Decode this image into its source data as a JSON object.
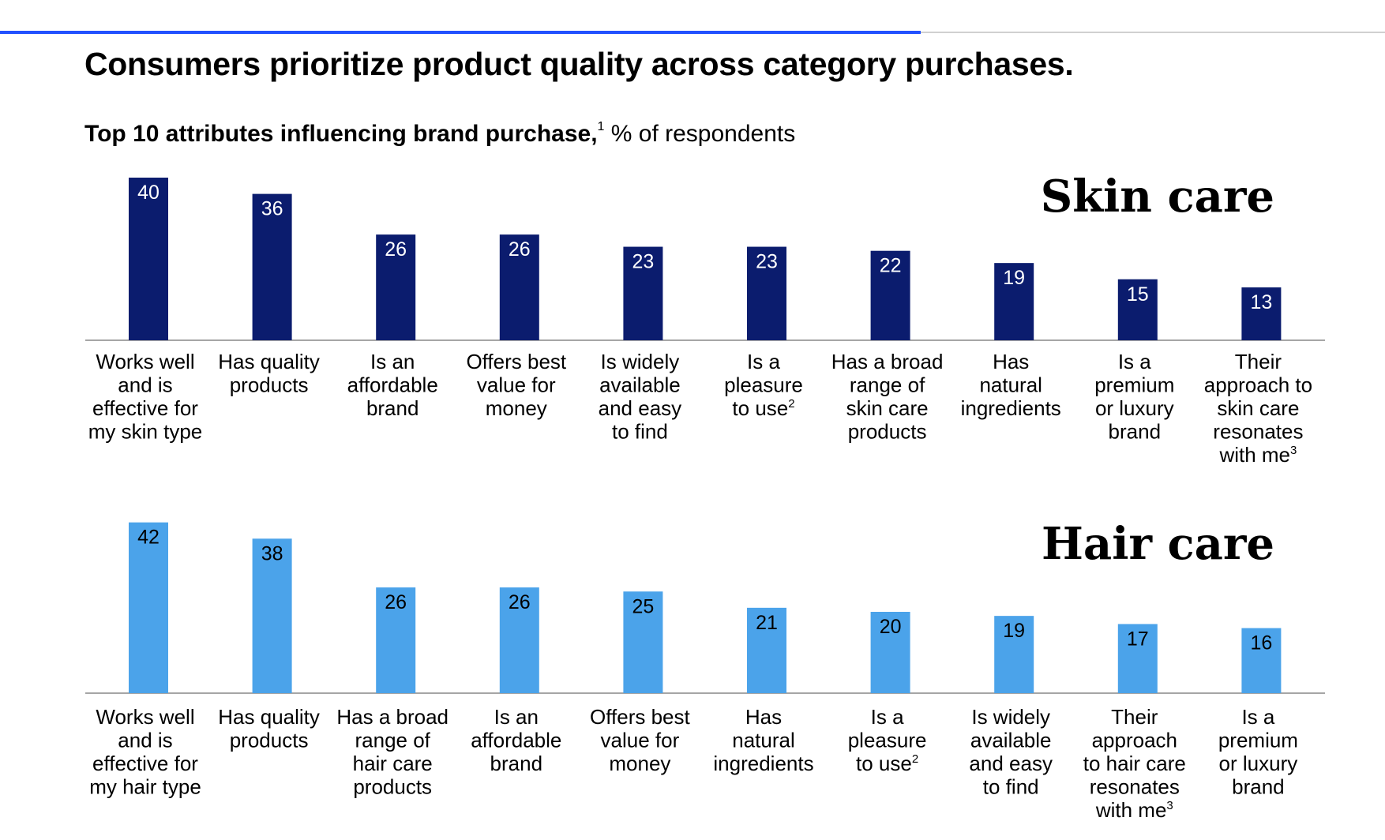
{
  "header": {
    "title": "Consumers prioritize product quality across category purchases.",
    "subtitle_bold": "Top 10 attributes influencing brand purchase,",
    "subtitle_sup": "1",
    "subtitle_rest": " % of respondents",
    "progress": 0.665
  },
  "colors": {
    "skin": "#0b1c6e",
    "hair": "#4ba3ea",
    "accent": "#2251ff"
  },
  "chart_data": [
    {
      "type": "bar",
      "title": "Skin care",
      "categories": [
        "Works well and is effective for my skin type",
        "Has quality products",
        "Is an affordable brand",
        "Offers best value for money",
        "Is widely available and easy to find",
        "Is a pleasure to use²",
        "Has a broad range of skin care products",
        "Has natural ingredients",
        "Is a premium or luxury brand",
        "Their approach to skin care resonates with me³"
      ],
      "label_lines": [
        [
          "Works well",
          "and is",
          "effective for",
          "my skin type"
        ],
        [
          "Has quality",
          "products"
        ],
        [
          "Is an",
          "affordable",
          "brand"
        ],
        [
          "Offers best",
          "value for",
          "money"
        ],
        [
          "Is widely",
          "available",
          "and easy",
          "to find"
        ],
        [
          "Is a",
          "pleasure",
          "to use|2"
        ],
        [
          "Has a broad",
          "range of",
          "skin care",
          "products"
        ],
        [
          "Has",
          "natural",
          "ingredients"
        ],
        [
          "Is a",
          "premium",
          "or luxury",
          "brand"
        ],
        [
          "Their",
          "approach to",
          "skin care",
          "resonates",
          "with me|3"
        ]
      ],
      "values": [
        40,
        36,
        26,
        26,
        23,
        23,
        22,
        19,
        15,
        13
      ],
      "ylim": [
        0,
        42
      ],
      "grid": false
    },
    {
      "type": "bar",
      "title": "Hair care",
      "categories": [
        "Works well and is effective for my hair type",
        "Has quality products",
        "Has a broad range of hair care products",
        "Is an affordable brand",
        "Offers best value for money",
        "Has natural ingredients",
        "Is a pleasure to use²",
        "Is widely available and easy to find",
        "Their approach to hair care resonates with me³",
        "Is a premium or luxury brand"
      ],
      "label_lines": [
        [
          "Works well",
          "and is",
          "effective for",
          "my hair type"
        ],
        [
          "Has quality",
          "products"
        ],
        [
          "Has a broad",
          "range of",
          "hair care",
          "products"
        ],
        [
          "Is an",
          "affordable",
          "brand"
        ],
        [
          "Offers best",
          "value for",
          "money"
        ],
        [
          "Has",
          "natural",
          "ingredients"
        ],
        [
          "Is a",
          "pleasure",
          "to use|2"
        ],
        [
          "Is widely",
          "available",
          "and easy",
          "to find"
        ],
        [
          "Their",
          "approach",
          "to hair care",
          "resonates",
          "with me|3"
        ],
        [
          "Is a",
          "premium",
          "or luxury",
          "brand"
        ]
      ],
      "values": [
        42,
        38,
        26,
        26,
        25,
        21,
        20,
        19,
        17,
        16
      ],
      "ylim": [
        0,
        42
      ],
      "grid": false
    }
  ]
}
